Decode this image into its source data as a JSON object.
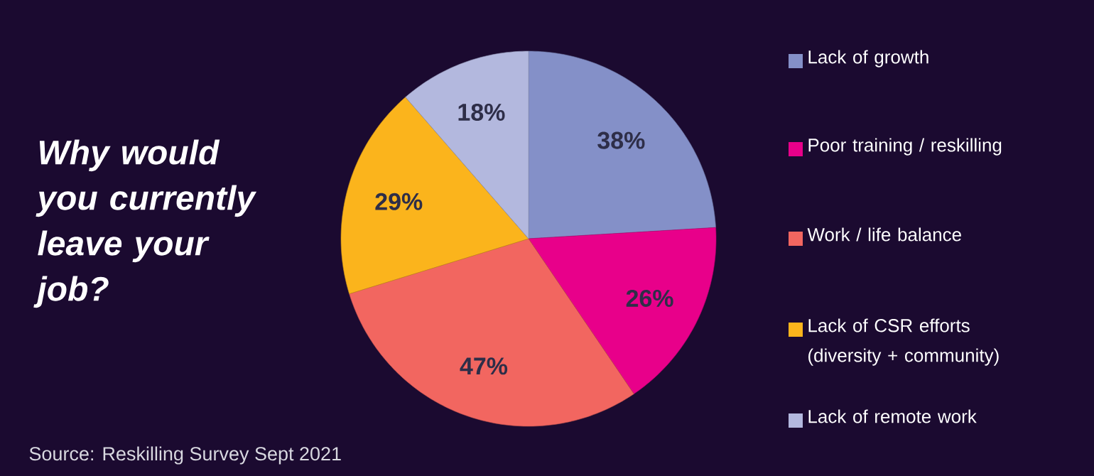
{
  "chart_data": {
    "type": "pie",
    "title": "Why would you currently leave your job?",
    "categories": [
      "Lack of growth",
      "Poor training / reskilling",
      "Work  / life balance",
      "Lack of CSR efforts (diversity + community)",
      "Lack of remote work"
    ],
    "values": [
      38,
      26,
      47,
      29,
      18
    ],
    "colors": [
      "#8490c8",
      "#e8008a",
      "#f26660",
      "#fbb41c",
      "#b3b8de"
    ],
    "value_labels": [
      "38%",
      "26%",
      "47%",
      "29%",
      "18%"
    ],
    "legend": "right",
    "annotations": [
      "Source: Reskilling Survey  Sept 2021"
    ]
  }
}
